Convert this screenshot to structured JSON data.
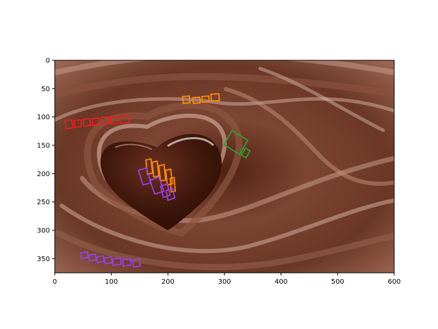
{
  "chart_data": {
    "type": "image",
    "xlim": [
      0,
      600
    ],
    "ylim": [
      375,
      0
    ],
    "x_ticks": [
      0,
      100,
      200,
      300,
      400,
      500,
      600
    ],
    "y_ticks": [
      0,
      50,
      100,
      150,
      200,
      250,
      300,
      350
    ],
    "grid": false,
    "image_description": "photo of a heart-shaped chocolate in swirling liquid chocolate",
    "annotations": [
      {
        "name": "red-word-boxes",
        "color": "#e32222",
        "polygons": [
          [
            [
              18,
              106
            ],
            [
              30,
              105
            ],
            [
              32,
              119
            ],
            [
              20,
              121
            ]
          ],
          [
            [
              34,
              106
            ],
            [
              46,
              105
            ],
            [
              47,
              117
            ],
            [
              35,
              118
            ]
          ],
          [
            [
              50,
              104
            ],
            [
              62,
              103
            ],
            [
              63,
              115
            ],
            [
              51,
              116
            ]
          ],
          [
            [
              66,
              103
            ],
            [
              78,
              102
            ],
            [
              79,
              114
            ],
            [
              67,
              115
            ]
          ],
          [
            [
              82,
              101
            ],
            [
              94,
              100
            ],
            [
              95,
              112
            ],
            [
              83,
              113
            ]
          ],
          [
            [
              98,
              100
            ],
            [
              110,
              99
            ],
            [
              111,
              111
            ],
            [
              99,
              112
            ]
          ],
          [
            [
              114,
              99
            ],
            [
              130,
              97
            ],
            [
              132,
              110
            ],
            [
              116,
              112
            ]
          ]
        ]
      },
      {
        "name": "orange-top-boxes",
        "color": "#ff8c00",
        "polygons": [
          [
            [
              226,
              64
            ],
            [
              238,
              63
            ],
            [
              239,
              75
            ],
            [
              227,
              76
            ]
          ],
          [
            [
              244,
              66
            ],
            [
              256,
              65
            ],
            [
              257,
              75
            ],
            [
              245,
              76
            ]
          ],
          [
            [
              260,
              64
            ],
            [
              272,
              63
            ],
            [
              273,
              73
            ],
            [
              261,
              74
            ]
          ],
          [
            [
              276,
              60
            ],
            [
              290,
              59
            ],
            [
              291,
              71
            ],
            [
              277,
              72
            ]
          ]
        ]
      },
      {
        "name": "green-ms-box",
        "color": "#2ca02c",
        "polygons": [
          [
            [
              313,
              124
            ],
            [
              341,
              141
            ],
            [
              327,
              166
            ],
            [
              299,
              149
            ]
          ],
          [
            [
              337,
              155
            ],
            [
              345,
              160
            ],
            [
              338,
              172
            ],
            [
              330,
              167
            ]
          ]
        ]
      },
      {
        "name": "orange-heart-boxes",
        "color": "#ff8c00",
        "polygons": [
          [
            [
              161,
              176
            ],
            [
              170,
              174
            ],
            [
              173,
              199
            ],
            [
              164,
              201
            ]
          ],
          [
            [
              172,
              180
            ],
            [
              181,
              178
            ],
            [
              184,
              204
            ],
            [
              175,
              206
            ]
          ],
          [
            [
              184,
              186
            ],
            [
              193,
              184
            ],
            [
              196,
              211
            ],
            [
              187,
              213
            ]
          ],
          [
            [
              196,
              194
            ],
            [
              205,
              192
            ],
            [
              208,
              218
            ],
            [
              199,
              220
            ]
          ],
          [
            [
              204,
              208
            ],
            [
              211,
              207
            ],
            [
              213,
              231
            ],
            [
              206,
              232
            ]
          ]
        ]
      },
      {
        "name": "purple-heart-boxes",
        "color": "#9b3fe6",
        "polygons": [
          [
            [
              148,
              194
            ],
            [
              162,
              190
            ],
            [
              170,
              216
            ],
            [
              156,
              220
            ]
          ],
          [
            [
              168,
              212
            ],
            [
              184,
              206
            ],
            [
              193,
              231
            ],
            [
              177,
              236
            ]
          ],
          [
            [
              187,
              222
            ],
            [
              199,
              218
            ],
            [
              204,
              238
            ],
            [
              192,
              242
            ]
          ],
          [
            [
              197,
              230
            ],
            [
              209,
              226
            ],
            [
              212,
              243
            ],
            [
              200,
              247
            ]
          ]
        ]
      },
      {
        "name": "purple-bottom-boxes",
        "color": "#9b3fe6",
        "polygons": [
          [
            [
              46,
              340
            ],
            [
              58,
              338
            ],
            [
              59,
              348
            ],
            [
              47,
              350
            ]
          ],
          [
            [
              60,
              344
            ],
            [
              72,
              342
            ],
            [
              73,
              352
            ],
            [
              61,
              354
            ]
          ],
          [
            [
              74,
              347
            ],
            [
              86,
              345
            ],
            [
              87,
              355
            ],
            [
              75,
              357
            ]
          ],
          [
            [
              88,
              349
            ],
            [
              100,
              347
            ],
            [
              101,
              357
            ],
            [
              89,
              359
            ]
          ],
          [
            [
              102,
              351
            ],
            [
              116,
              349
            ],
            [
              117,
              360
            ],
            [
              103,
              362
            ]
          ],
          [
            [
              120,
              352
            ],
            [
              134,
              350
            ],
            [
              135,
              361
            ],
            [
              121,
              363
            ]
          ],
          [
            [
              138,
              353
            ],
            [
              150,
              351
            ],
            [
              151,
              363
            ],
            [
              139,
              365
            ]
          ]
        ]
      }
    ]
  },
  "colors": {
    "chocolate_dark": "#3b180d",
    "chocolate_mid": "#744030",
    "chocolate_light": "#a36d5c",
    "highlight": "#e8d3c9"
  }
}
